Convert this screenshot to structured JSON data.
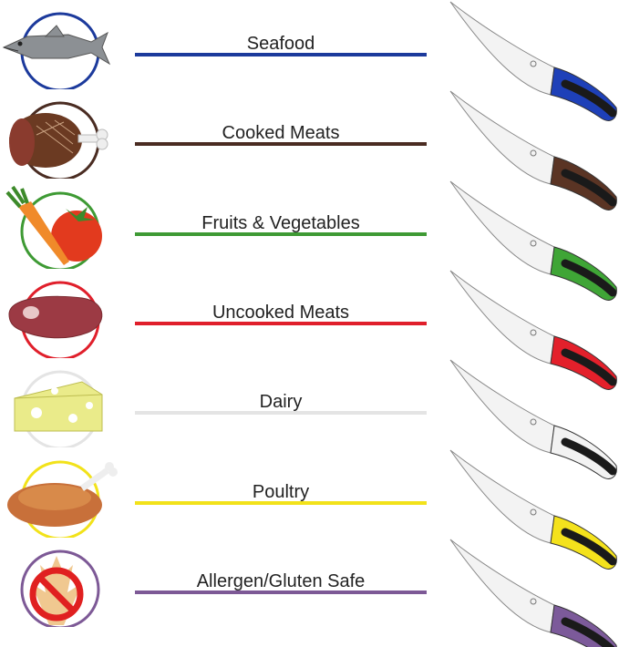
{
  "categories": [
    {
      "label": "Seafood",
      "color": "#1c3a9c",
      "handle": "#1e40b8",
      "icon": "fish-icon"
    },
    {
      "label": "Cooked Meats",
      "color": "#4a2c22",
      "handle": "#5a3424",
      "icon": "cooked-ham-icon"
    },
    {
      "label": "Fruits & Vegetables",
      "color": "#3e9a34",
      "handle": "#3fa536",
      "icon": "carrot-tomato-icon"
    },
    {
      "label": "Uncooked Meats",
      "color": "#e01f2b",
      "handle": "#e3202b",
      "icon": "raw-steak-icon"
    },
    {
      "label": "Dairy",
      "color": "#e4e4e4",
      "handle": "#f2f2f2",
      "icon": "cheese-icon"
    },
    {
      "label": "Poultry",
      "color": "#f2e21a",
      "handle": "#f4e21c",
      "icon": "roast-chicken-icon"
    },
    {
      "label": "Allergen/Gluten Safe",
      "color": "#7d5996",
      "handle": "#7c5a9a",
      "icon": "no-wheat-icon"
    }
  ]
}
